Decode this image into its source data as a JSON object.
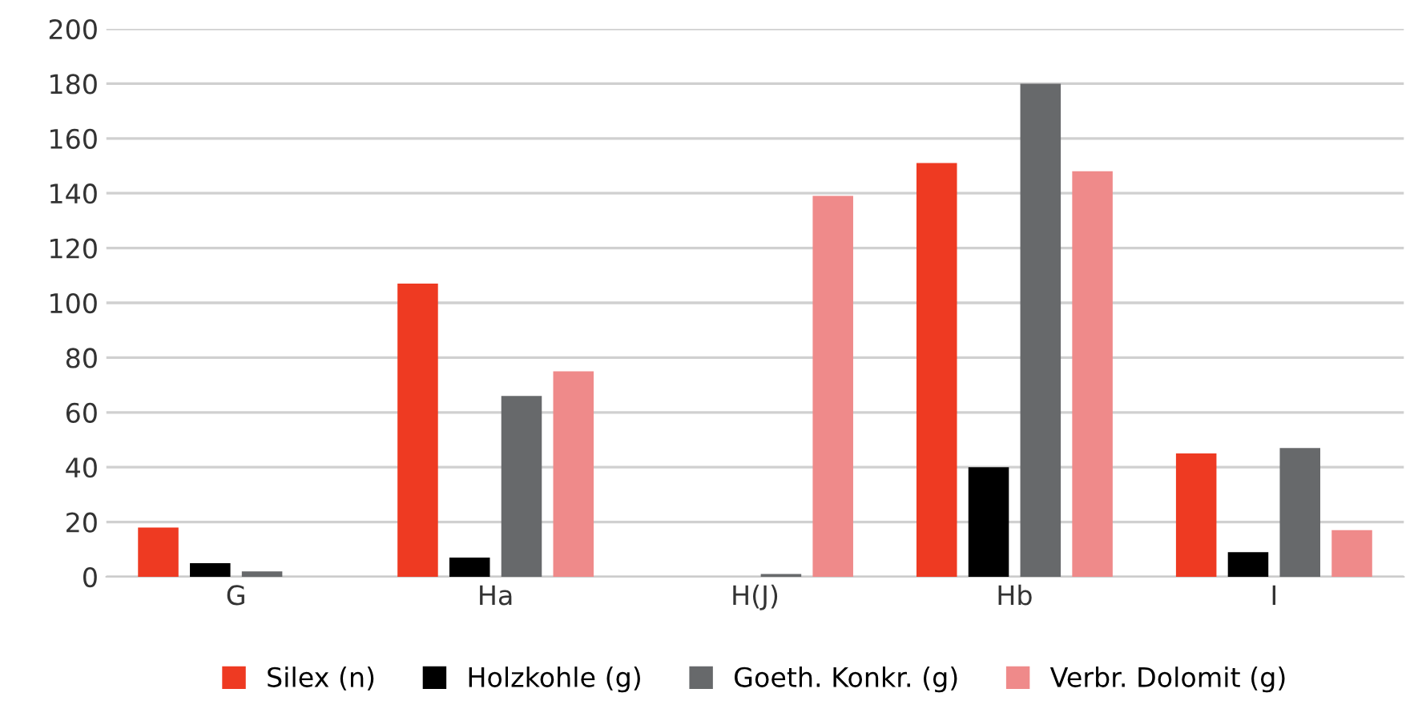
{
  "chart_data": {
    "type": "bar",
    "categories": [
      "G",
      "Ha",
      "H(J)",
      "Hb",
      "I"
    ],
    "series": [
      {
        "name": "Silex (n)",
        "color": "#ee3a22",
        "values": [
          18,
          107,
          0,
          151,
          45
        ]
      },
      {
        "name": "Holzkohle (g)",
        "color": "#000000",
        "values": [
          5,
          7,
          0,
          40,
          9
        ]
      },
      {
        "name": "Goeth. Konkr. (g)",
        "color": "#67696b",
        "values": [
          2,
          66,
          1,
          180,
          47
        ]
      },
      {
        "name": "Verbr. Dolomit (g)",
        "color": "#ef8a8a",
        "values": [
          0,
          75,
          139,
          148,
          17
        ]
      }
    ],
    "ylim": [
      0,
      200
    ],
    "yticks": [
      0,
      20,
      40,
      60,
      80,
      100,
      120,
      140,
      160,
      180,
      200
    ],
    "grid": "y",
    "legend": "bottom"
  }
}
